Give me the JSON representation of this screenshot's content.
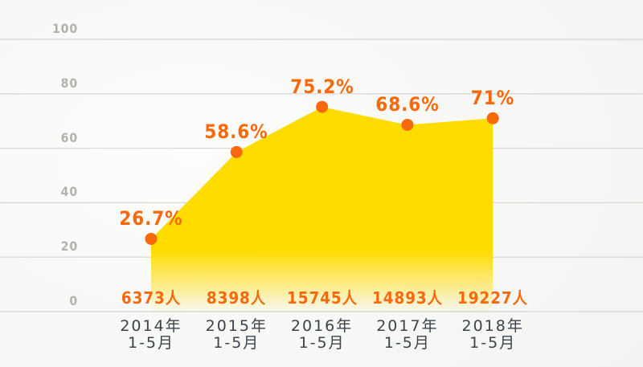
{
  "chart_data": {
    "type": "area",
    "title": "",
    "xlabel": "",
    "ylabel": "",
    "ylim": [
      0,
      100
    ],
    "y_ticks": [
      0,
      20,
      40,
      60,
      80,
      100
    ],
    "grid": true,
    "legend": "none",
    "categories": [
      {
        "year": "2014年",
        "period": "1-5月"
      },
      {
        "year": "2015年",
        "period": "1-5月"
      },
      {
        "year": "2016年",
        "period": "1-5月"
      },
      {
        "year": "2017年",
        "period": "1-5月"
      },
      {
        "year": "2018年",
        "period": "1-5月"
      }
    ],
    "series": [
      {
        "name": "percentage",
        "values": [
          26.7,
          58.6,
          75.2,
          68.6,
          71
        ],
        "labels": [
          "26.7%",
          "58.6%",
          "75.2%",
          "68.6%",
          "71%"
        ]
      },
      {
        "name": "count",
        "labels": [
          "6373人",
          "8398人",
          "15745人",
          "14893人",
          "19227人"
        ]
      }
    ],
    "colors": {
      "area_fill": "#ffdc00",
      "point": "#f8690c",
      "percent_label": "#f8690c",
      "count_label": "#f8690c",
      "category_label": "#3a444d",
      "tick_label": "#b3b1ae",
      "gridline": "#d9d9d6"
    }
  }
}
